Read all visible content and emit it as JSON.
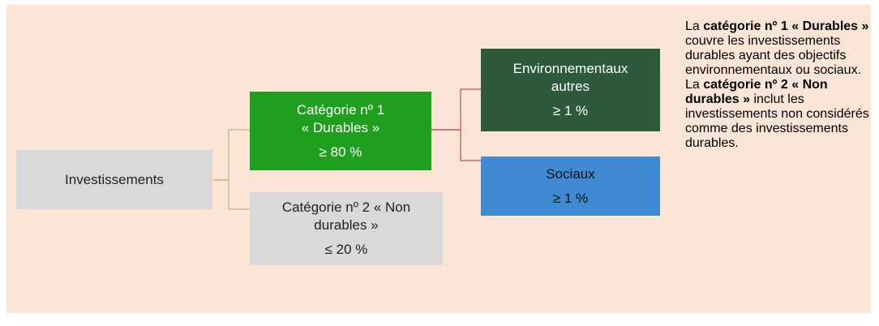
{
  "nodes": [
    {
      "label": [
        "Investissements"
      ],
      "value": null
    },
    {
      "label": [
        "Catégorie nº 1",
        "« Durables »"
      ],
      "value": "≥ 80 %"
    },
    {
      "label": [
        "Catégorie nº 2 « Non",
        "durables »"
      ],
      "value": "≤ 20 %"
    },
    {
      "label": [
        "Environnementaux",
        "autres"
      ],
      "value": "≥ 1 %"
    },
    {
      "label": [
        "Sociaux"
      ],
      "value": "≥ 1 %"
    }
  ],
  "notes": [
    {
      "segments": [
        {
          "text": "La ",
          "bold": false
        },
        {
          "text": "catégorie nº 1 « Durables »",
          "bold": true
        },
        {
          "text": " couvre les investissements durables ayant des objectifs environnementaux ou sociaux.",
          "bold": false
        }
      ]
    },
    {
      "segments": [
        {
          "text": "La ",
          "bold": false
        },
        {
          "text": "catégorie nº 2 « Non durables »",
          "bold": true
        },
        {
          "text": " inclut les investissements non considérés comme des investissements durables.",
          "bold": false
        }
      ]
    }
  ]
}
